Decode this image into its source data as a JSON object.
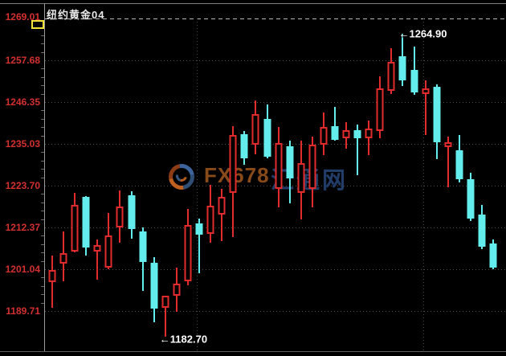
{
  "header": {
    "title": "纽约黄金04"
  },
  "watermark": {
    "brand": "FX678",
    "site": "汇通网"
  },
  "annotations": {
    "high": {
      "text": "←1264.90",
      "price": 1264.9,
      "candle_index": 31,
      "dx": -5,
      "dy": 0
    },
    "low": {
      "text": "←1182.70",
      "price": 1182.7,
      "candle_index": 10,
      "dx": -7,
      "dy": 3
    }
  },
  "colors": {
    "background": "#000000",
    "up_candle": "#e02c2c",
    "down_candle": "#63eded",
    "price_label": "#d43030",
    "grid": "#4a4a4a",
    "current_price_dash": "#b9b9b9",
    "marker_yellow": "#f2e23a",
    "annotation_text": "#ffffff"
  },
  "y_axis": {
    "labels": [
      "1269.01",
      "1257.68",
      "1246.35",
      "1235.03",
      "1223.70",
      "1212.37",
      "1201.04",
      "1189.71"
    ]
  },
  "chart_data": {
    "type": "candlestick",
    "title": "纽约黄金04",
    "y_ticks": [
      1269.01,
      1257.68,
      1246.35,
      1235.03,
      1223.7,
      1212.37,
      1201.04,
      1189.71
    ],
    "ylim": [
      1178.0,
      1271.5
    ],
    "grid": "dotted-horizontal, two dotted vertical session dividers",
    "annotated_high": 1264.9,
    "annotated_low": 1182.7,
    "up_style": "hollow red",
    "down_style": "solid cyan",
    "candles": [
      {
        "dir": "up",
        "o": 1197.5,
        "c": 1200.8,
        "h": 1204.7,
        "l": 1190.6
      },
      {
        "dir": "up",
        "o": 1202.5,
        "c": 1205.4,
        "h": 1211.3,
        "l": 1197.8
      },
      {
        "dir": "up",
        "o": 1205.8,
        "c": 1218.5,
        "h": 1221.7,
        "l": 1205.5
      },
      {
        "dir": "down",
        "o": 1220.6,
        "c": 1206.9,
        "h": 1220.8,
        "l": 1204.7
      },
      {
        "dir": "up",
        "o": 1205.8,
        "c": 1207.6,
        "h": 1209.1,
        "l": 1198.2
      },
      {
        "dir": "up",
        "o": 1201.5,
        "c": 1210.2,
        "h": 1216.3,
        "l": 1201.0
      },
      {
        "dir": "up",
        "o": 1212.4,
        "c": 1218.0,
        "h": 1222.4,
        "l": 1208.2
      },
      {
        "dir": "down",
        "o": 1221.1,
        "c": 1211.9,
        "h": 1222.2,
        "l": 1209.3
      },
      {
        "dir": "down",
        "o": 1211.3,
        "c": 1203.0,
        "h": 1212.4,
        "l": 1195.1
      },
      {
        "dir": "down",
        "o": 1202.8,
        "c": 1190.3,
        "h": 1204.3,
        "l": 1186.6
      },
      {
        "dir": "up",
        "o": 1190.6,
        "c": 1193.8,
        "h": 1193.8,
        "l": 1182.7
      },
      {
        "dir": "up",
        "o": 1193.8,
        "c": 1197.1,
        "h": 1201.5,
        "l": 1189.5
      },
      {
        "dir": "up",
        "o": 1197.8,
        "c": 1213.0,
        "h": 1217.4,
        "l": 1196.7
      },
      {
        "dir": "down",
        "o": 1213.5,
        "c": 1210.4,
        "h": 1214.8,
        "l": 1199.9
      },
      {
        "dir": "up",
        "o": 1210.6,
        "c": 1218.2,
        "h": 1223.9,
        "l": 1208.2
      },
      {
        "dir": "up",
        "o": 1215.8,
        "c": 1220.6,
        "h": 1222.8,
        "l": 1208.7
      },
      {
        "dir": "up",
        "o": 1221.7,
        "c": 1237.4,
        "h": 1239.8,
        "l": 1209.8
      },
      {
        "dir": "down",
        "o": 1237.6,
        "c": 1231.1,
        "h": 1238.5,
        "l": 1229.3
      },
      {
        "dir": "up",
        "o": 1234.8,
        "c": 1243.1,
        "h": 1246.8,
        "l": 1232.2
      },
      {
        "dir": "down",
        "o": 1241.8,
        "c": 1231.5,
        "h": 1245.7,
        "l": 1231.1
      },
      {
        "dir": "up",
        "o": 1222.8,
        "c": 1235.2,
        "h": 1239.6,
        "l": 1217.8
      },
      {
        "dir": "down",
        "o": 1234.4,
        "c": 1225.7,
        "h": 1235.9,
        "l": 1218.9
      },
      {
        "dir": "up",
        "o": 1221.7,
        "c": 1229.8,
        "h": 1235.9,
        "l": 1214.5
      },
      {
        "dir": "up",
        "o": 1222.8,
        "c": 1234.8,
        "h": 1237.0,
        "l": 1217.8
      },
      {
        "dir": "up",
        "o": 1234.8,
        "c": 1239.6,
        "h": 1243.5,
        "l": 1232.0
      },
      {
        "dir": "down",
        "o": 1239.8,
        "c": 1236.1,
        "h": 1245.0,
        "l": 1235.9
      },
      {
        "dir": "up",
        "o": 1236.5,
        "c": 1238.7,
        "h": 1240.9,
        "l": 1233.7
      },
      {
        "dir": "down",
        "o": 1238.7,
        "c": 1236.5,
        "h": 1240.2,
        "l": 1226.5
      },
      {
        "dir": "up",
        "o": 1236.5,
        "c": 1239.2,
        "h": 1241.3,
        "l": 1232.0
      },
      {
        "dir": "up",
        "o": 1238.5,
        "c": 1250.1,
        "h": 1253.3,
        "l": 1236.5
      },
      {
        "dir": "up",
        "o": 1249.4,
        "c": 1257.2,
        "h": 1260.9,
        "l": 1248.5
      },
      {
        "dir": "down",
        "o": 1258.8,
        "c": 1252.2,
        "h": 1264.9,
        "l": 1250.7
      },
      {
        "dir": "down",
        "o": 1255.1,
        "c": 1249.0,
        "h": 1261.4,
        "l": 1248.3
      },
      {
        "dir": "up",
        "o": 1248.5,
        "c": 1250.1,
        "h": 1252.2,
        "l": 1237.4
      },
      {
        "dir": "down",
        "o": 1250.5,
        "c": 1235.5,
        "h": 1251.1,
        "l": 1230.9
      },
      {
        "dir": "up",
        "o": 1234.1,
        "c": 1235.5,
        "h": 1237.0,
        "l": 1223.2
      },
      {
        "dir": "down",
        "o": 1233.3,
        "c": 1225.4,
        "h": 1237.4,
        "l": 1224.6
      },
      {
        "dir": "down",
        "o": 1225.4,
        "c": 1214.8,
        "h": 1227.2,
        "l": 1214.1
      },
      {
        "dir": "down",
        "o": 1215.8,
        "c": 1207.1,
        "h": 1218.5,
        "l": 1206.5
      },
      {
        "dir": "down",
        "o": 1208.0,
        "c": 1201.5,
        "h": 1209.1,
        "l": 1201.0
      }
    ]
  }
}
